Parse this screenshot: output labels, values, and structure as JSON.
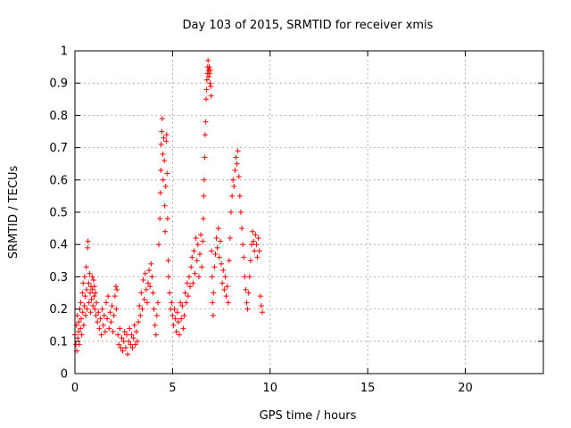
{
  "chart_data": {
    "type": "scatter",
    "title": "Day 103 of 2015, SRMTID for receiver xmis",
    "xlabel": "GPS time / hours",
    "ylabel": "SRMTID / TECUs",
    "xlim": [
      0,
      24
    ],
    "ylim": [
      0,
      1
    ],
    "xticks": [
      0,
      5,
      10,
      15,
      20
    ],
    "yticks": [
      0,
      0.1,
      0.2,
      0.3,
      0.4,
      0.5,
      0.6,
      0.7,
      0.8,
      0.9,
      1
    ],
    "grid": true,
    "marker": "+",
    "color": "#ff0000",
    "series": [
      {
        "name": "SRMTID",
        "points": [
          [
            0.0,
            0.12
          ],
          [
            0.05,
            0.09
          ],
          [
            0.08,
            0.15
          ],
          [
            0.1,
            0.07
          ],
          [
            0.12,
            0.18
          ],
          [
            0.15,
            0.11
          ],
          [
            0.18,
            0.13
          ],
          [
            0.2,
            0.16
          ],
          [
            0.22,
            0.09
          ],
          [
            0.25,
            0.2
          ],
          [
            0.28,
            0.14
          ],
          [
            0.3,
            0.22
          ],
          [
            0.32,
            0.17
          ],
          [
            0.35,
            0.12
          ],
          [
            0.38,
            0.25
          ],
          [
            0.4,
            0.19
          ],
          [
            0.42,
            0.28
          ],
          [
            0.45,
            0.15
          ],
          [
            0.48,
            0.21
          ],
          [
            0.5,
            0.3
          ],
          [
            0.52,
            0.24
          ],
          [
            0.55,
            0.18
          ],
          [
            0.58,
            0.33
          ],
          [
            0.6,
            0.26
          ],
          [
            0.62,
            0.2
          ],
          [
            0.65,
            0.39
          ],
          [
            0.67,
            0.41
          ],
          [
            0.7,
            0.28
          ],
          [
            0.72,
            0.22
          ],
          [
            0.75,
            0.31
          ],
          [
            0.78,
            0.25
          ],
          [
            0.8,
            0.19
          ],
          [
            0.82,
            0.27
          ],
          [
            0.85,
            0.23
          ],
          [
            0.88,
            0.3
          ],
          [
            0.9,
            0.26
          ],
          [
            0.92,
            0.21
          ],
          [
            0.95,
            0.29
          ],
          [
            0.98,
            0.24
          ],
          [
            1.0,
            0.27
          ],
          [
            1.02,
            0.2
          ],
          [
            1.05,
            0.25
          ],
          [
            1.08,
            0.18
          ],
          [
            1.1,
            0.22
          ],
          [
            1.15,
            0.16
          ],
          [
            1.2,
            0.19
          ],
          [
            1.25,
            0.14
          ],
          [
            1.3,
            0.17
          ],
          [
            1.35,
            0.12
          ],
          [
            1.4,
            0.2
          ],
          [
            1.45,
            0.15
          ],
          [
            1.5,
            0.18
          ],
          [
            1.55,
            0.13
          ],
          [
            1.6,
            0.22
          ],
          [
            1.65,
            0.17
          ],
          [
            1.7,
            0.24
          ],
          [
            1.75,
            0.14
          ],
          [
            1.8,
            0.19
          ],
          [
            1.85,
            0.16
          ],
          [
            1.9,
            0.21
          ],
          [
            1.95,
            0.13
          ],
          [
            2.0,
            0.18
          ],
          [
            2.05,
            0.24
          ],
          [
            2.1,
            0.27
          ],
          [
            2.12,
            0.2
          ],
          [
            2.15,
            0.26
          ],
          [
            2.2,
            0.12
          ],
          [
            2.25,
            0.09
          ],
          [
            2.3,
            0.14
          ],
          [
            2.35,
            0.08
          ],
          [
            2.4,
            0.11
          ],
          [
            2.45,
            0.07
          ],
          [
            2.5,
            0.1
          ],
          [
            2.55,
            0.13
          ],
          [
            2.6,
            0.08
          ],
          [
            2.65,
            0.12
          ],
          [
            2.7,
            0.06
          ],
          [
            2.75,
            0.1
          ],
          [
            2.8,
            0.14
          ],
          [
            2.85,
            0.09
          ],
          [
            2.9,
            0.12
          ],
          [
            2.95,
            0.08
          ],
          [
            3.0,
            0.11
          ],
          [
            3.05,
            0.15
          ],
          [
            3.1,
            0.09
          ],
          [
            3.15,
            0.13
          ],
          [
            3.2,
            0.1
          ],
          [
            3.25,
            0.16
          ],
          [
            3.3,
            0.21
          ],
          [
            3.35,
            0.18
          ],
          [
            3.4,
            0.25
          ],
          [
            3.45,
            0.2
          ],
          [
            3.5,
            0.29
          ],
          [
            3.55,
            0.23
          ],
          [
            3.6,
            0.31
          ],
          [
            3.65,
            0.26
          ],
          [
            3.7,
            0.22
          ],
          [
            3.75,
            0.28
          ],
          [
            3.8,
            0.32
          ],
          [
            3.85,
            0.27
          ],
          [
            3.9,
            0.34
          ],
          [
            3.95,
            0.3
          ],
          [
            4.0,
            0.25
          ],
          [
            4.05,
            0.2
          ],
          [
            4.1,
            0.15
          ],
          [
            4.15,
            0.12
          ],
          [
            4.2,
            0.18
          ],
          [
            4.25,
            0.22
          ],
          [
            4.3,
            0.4
          ],
          [
            4.35,
            0.48
          ],
          [
            4.38,
            0.56
          ],
          [
            4.4,
            0.63
          ],
          [
            4.42,
            0.71
          ],
          [
            4.45,
            0.75
          ],
          [
            4.47,
            0.79
          ],
          [
            4.5,
            0.68
          ],
          [
            4.52,
            0.6
          ],
          [
            4.55,
            0.73
          ],
          [
            4.58,
            0.66
          ],
          [
            4.6,
            0.52
          ],
          [
            4.62,
            0.44
          ],
          [
            4.65,
            0.58
          ],
          [
            4.68,
            0.72
          ],
          [
            4.7,
            0.74
          ],
          [
            4.72,
            0.62
          ],
          [
            4.75,
            0.48
          ],
          [
            4.78,
            0.35
          ],
          [
            4.8,
            0.3
          ],
          [
            4.85,
            0.25
          ],
          [
            4.9,
            0.2
          ],
          [
            4.95,
            0.22
          ],
          [
            5.0,
            0.18
          ],
          [
            5.05,
            0.15
          ],
          [
            5.1,
            0.2
          ],
          [
            5.15,
            0.17
          ],
          [
            5.2,
            0.13
          ],
          [
            5.25,
            0.19
          ],
          [
            5.3,
            0.16
          ],
          [
            5.35,
            0.12
          ],
          [
            5.4,
            0.22
          ],
          [
            5.45,
            0.17
          ],
          [
            5.5,
            0.21
          ],
          [
            5.55,
            0.14
          ],
          [
            5.6,
            0.18
          ],
          [
            5.65,
            0.25
          ],
          [
            5.7,
            0.22
          ],
          [
            5.75,
            0.28
          ],
          [
            5.8,
            0.24
          ],
          [
            5.85,
            0.3
          ],
          [
            5.9,
            0.27
          ],
          [
            5.95,
            0.33
          ],
          [
            6.0,
            0.36
          ],
          [
            6.05,
            0.28
          ],
          [
            6.1,
            0.38
          ],
          [
            6.15,
            0.31
          ],
          [
            6.2,
            0.42
          ],
          [
            6.25,
            0.35
          ],
          [
            6.3,
            0.4
          ],
          [
            6.35,
            0.3
          ],
          [
            6.4,
            0.37
          ],
          [
            6.45,
            0.43
          ],
          [
            6.5,
            0.33
          ],
          [
            6.55,
            0.41
          ],
          [
            6.58,
            0.48
          ],
          [
            6.6,
            0.55
          ],
          [
            6.62,
            0.6
          ],
          [
            6.65,
            0.67
          ],
          [
            6.67,
            0.74
          ],
          [
            6.7,
            0.78
          ],
          [
            6.72,
            0.85
          ],
          [
            6.74,
            0.88
          ],
          [
            6.76,
            0.91
          ],
          [
            6.78,
            0.93
          ],
          [
            6.8,
            0.95
          ],
          [
            6.82,
            0.97
          ],
          [
            6.84,
            0.94
          ],
          [
            6.86,
            0.92
          ],
          [
            6.88,
            0.95
          ],
          [
            6.9,
            0.93
          ],
          [
            6.92,
            0.9
          ],
          [
            6.94,
            0.94
          ],
          [
            6.96,
            0.89
          ],
          [
            6.98,
            0.86
          ],
          [
            7.0,
            0.38
          ],
          [
            7.03,
            0.3
          ],
          [
            7.05,
            0.22
          ],
          [
            7.08,
            0.18
          ],
          [
            7.1,
            0.25
          ],
          [
            7.15,
            0.33
          ],
          [
            7.2,
            0.37
          ],
          [
            7.25,
            0.42
          ],
          [
            7.3,
            0.39
          ],
          [
            7.35,
            0.45
          ],
          [
            7.4,
            0.36
          ],
          [
            7.45,
            0.41
          ],
          [
            7.5,
            0.34
          ],
          [
            7.55,
            0.28
          ],
          [
            7.6,
            0.32
          ],
          [
            7.65,
            0.26
          ],
          [
            7.7,
            0.3
          ],
          [
            7.75,
            0.24
          ],
          [
            7.8,
            0.27
          ],
          [
            7.85,
            0.22
          ],
          [
            7.9,
            0.35
          ],
          [
            7.95,
            0.42
          ],
          [
            8.0,
            0.5
          ],
          [
            8.05,
            0.55
          ],
          [
            8.1,
            0.6
          ],
          [
            8.15,
            0.58
          ],
          [
            8.2,
            0.63
          ],
          [
            8.25,
            0.67
          ],
          [
            8.3,
            0.65
          ],
          [
            8.35,
            0.69
          ],
          [
            8.4,
            0.61
          ],
          [
            8.45,
            0.55
          ],
          [
            8.5,
            0.5
          ],
          [
            8.55,
            0.45
          ],
          [
            8.6,
            0.4
          ],
          [
            8.65,
            0.36
          ],
          [
            8.7,
            0.3
          ],
          [
            8.75,
            0.26
          ],
          [
            8.8,
            0.22
          ],
          [
            8.85,
            0.2
          ],
          [
            8.9,
            0.25
          ],
          [
            8.95,
            0.3
          ],
          [
            9.0,
            0.35
          ],
          [
            9.05,
            0.4
          ],
          [
            9.1,
            0.44
          ],
          [
            9.15,
            0.41
          ],
          [
            9.2,
            0.38
          ],
          [
            9.25,
            0.43
          ],
          [
            9.3,
            0.4
          ],
          [
            9.35,
            0.36
          ],
          [
            9.4,
            0.42
          ],
          [
            9.45,
            0.38
          ],
          [
            9.5,
            0.24
          ],
          [
            9.55,
            0.21
          ],
          [
            9.6,
            0.19
          ]
        ]
      }
    ]
  }
}
